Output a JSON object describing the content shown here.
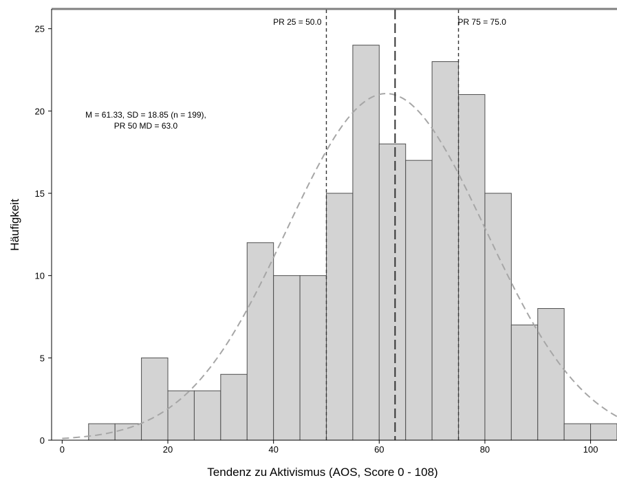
{
  "chart_data": {
    "type": "bar",
    "title": "",
    "xlabel": "Tendenz zu Aktivismus (AOS, Score 0 - 108)",
    "ylabel": "Häufigkeit",
    "xlim": [
      -2,
      105
    ],
    "ylim": [
      0,
      26.2
    ],
    "x_ticks": [
      0,
      20,
      40,
      60,
      80,
      100
    ],
    "y_ticks": [
      0,
      5,
      10,
      15,
      20,
      25
    ],
    "bin_width": 5,
    "bins": [
      {
        "start": 5,
        "count": 1
      },
      {
        "start": 10,
        "count": 1
      },
      {
        "start": 15,
        "count": 5
      },
      {
        "start": 20,
        "count": 3
      },
      {
        "start": 25,
        "count": 3
      },
      {
        "start": 30,
        "count": 4
      },
      {
        "start": 35,
        "count": 12
      },
      {
        "start": 40,
        "count": 10
      },
      {
        "start": 45,
        "count": 10
      },
      {
        "start": 50,
        "count": 15
      },
      {
        "start": 55,
        "count": 24
      },
      {
        "start": 60,
        "count": 18
      },
      {
        "start": 65,
        "count": 17
      },
      {
        "start": 70,
        "count": 23
      },
      {
        "start": 75,
        "count": 21
      },
      {
        "start": 80,
        "count": 15
      },
      {
        "start": 85,
        "count": 7
      },
      {
        "start": 90,
        "count": 8
      },
      {
        "start": 95,
        "count": 1
      },
      {
        "start": 100,
        "count": 1
      }
    ],
    "normal_curve": {
      "mean": 61.33,
      "sd": 18.85,
      "n": 199
    },
    "reference_lines": [
      {
        "x": 50.0,
        "label": "PR 25 = 50.0"
      },
      {
        "x": 63.0,
        "label": ""
      },
      {
        "x": 75.0,
        "label": "PR 75 = 75.0"
      }
    ],
    "annotation": {
      "line1": "M = 61.33, SD = 18.85 (n = 199),",
      "line2": "PR 50 MD = 63.0"
    },
    "colors": {
      "bar_fill": "#d3d3d3",
      "bar_stroke": "#4d4d4d",
      "curve": "#a6a6a6",
      "reference_line": "#333333",
      "frame": "#808080"
    },
    "grid": false
  }
}
